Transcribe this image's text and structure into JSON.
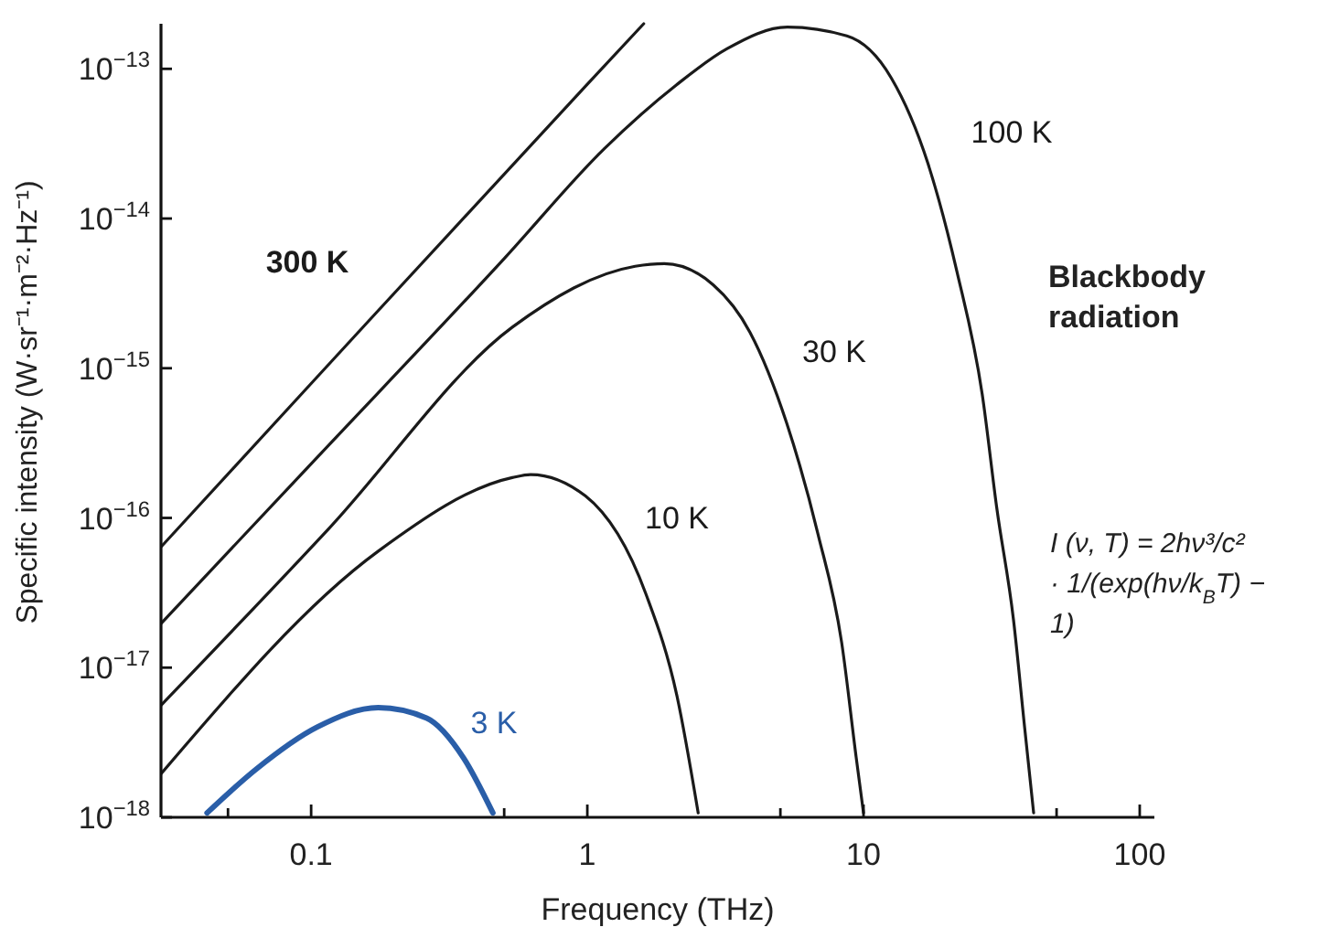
{
  "chart_data": {
    "type": "line",
    "title": "Blackbody radiation",
    "xlabel": "Frequency (THz)",
    "ylabel": "Specific intensity (W·sr⁻¹·m⁻²·Hz⁻¹)",
    "log": "xy",
    "grid": false,
    "xlim": [
      0.0286,
      113
    ],
    "ylim": [
      1e-18,
      2e-13
    ],
    "xticks": [
      {
        "value": 0.05,
        "label": null
      },
      0.1,
      {
        "value": 0.5,
        "label": null
      },
      1,
      {
        "value": 5,
        "label": null
      },
      10,
      {
        "value": 50,
        "label": null
      },
      100
    ],
    "yticks": [
      {
        "value": 1e-18,
        "label": "10$^{−18}$"
      },
      {
        "value": 1e-17,
        "label": "10$^{−17}$"
      },
      {
        "value": 1e-16,
        "label": "10$^{−16}$"
      },
      {
        "value": 1e-15,
        "label": "10$^{−15}$"
      },
      {
        "value": 1e-14,
        "label": "10$^{−14}$"
      },
      {
        "value": 1e-13,
        "label": "10$^{−13}$"
      }
    ],
    "series": [
      {
        "name": "300 K",
        "color": "#1a1a1a",
        "x": [
          0.0286,
          0.1,
          1,
          1.6
        ],
        "values": [
          6.4e-17,
          7.9e-16,
          7.9e-14,
          2e-13
        ]
      },
      {
        "name": "100 K",
        "color": "#1a1a1a",
        "x": [
          0.0286,
          0.1,
          0.5,
          1.15,
          2.1,
          3.2,
          5.3,
          8.7,
          12.6,
          17.1,
          21.8,
          26.9,
          30.4,
          34.9,
          38.3,
          41.3
        ],
        "values": [
          1.97e-17,
          2.3e-16,
          5.4e-15,
          2.92e-14,
          7.8e-14,
          1.36e-13,
          1.9e-13,
          1.66e-13,
          8.7e-14,
          2.34e-14,
          4.4e-15,
          6.7e-16,
          1.15e-16,
          2.1e-17,
          4e-18,
          1.07e-18
        ]
      },
      {
        "name": "30 K",
        "color": "#1a1a1a",
        "x": [
          0.0286,
          0.116,
          0.535,
          1.49,
          1.9,
          2.86,
          3.88,
          5.27,
          6.83,
          8.33,
          9.41,
          10.0
        ],
        "values": [
          5.6e-18,
          8.5e-17,
          1.88e-15,
          4.8e-15,
          5e-15,
          3.6e-15,
          1.74e-15,
          4.3e-16,
          7.9e-17,
          1.48e-17,
          2.5e-18,
          1.07e-18
        ]
      },
      {
        "name": "10 K",
        "color": "#1a1a1a",
        "x": [
          0.0286,
          0.175,
          0.535,
          0.623,
          0.985,
          1.63,
          2.11,
          2.52
        ],
        "values": [
          1.95e-18,
          6e-17,
          1.86e-16,
          1.95e-16,
          1.4e-16,
          3.1e-17,
          6.5e-18,
          1.07e-18
        ]
      },
      {
        "name": "3 K",
        "color": "#2a5ea8",
        "x": [
          0.042,
          0.0633,
          0.105,
          0.175,
          0.262,
          0.356,
          0.455
        ],
        "values": [
          1.07e-18,
          2.1e-18,
          4e-18,
          5.4e-18,
          4.6e-18,
          2.5e-18,
          1.07e-18
        ]
      }
    ],
    "annotations": [
      "I (ν, T) = 2hν³/c² · 1/(exp(hν/k$_{B}$T) − 1)"
    ]
  }
}
